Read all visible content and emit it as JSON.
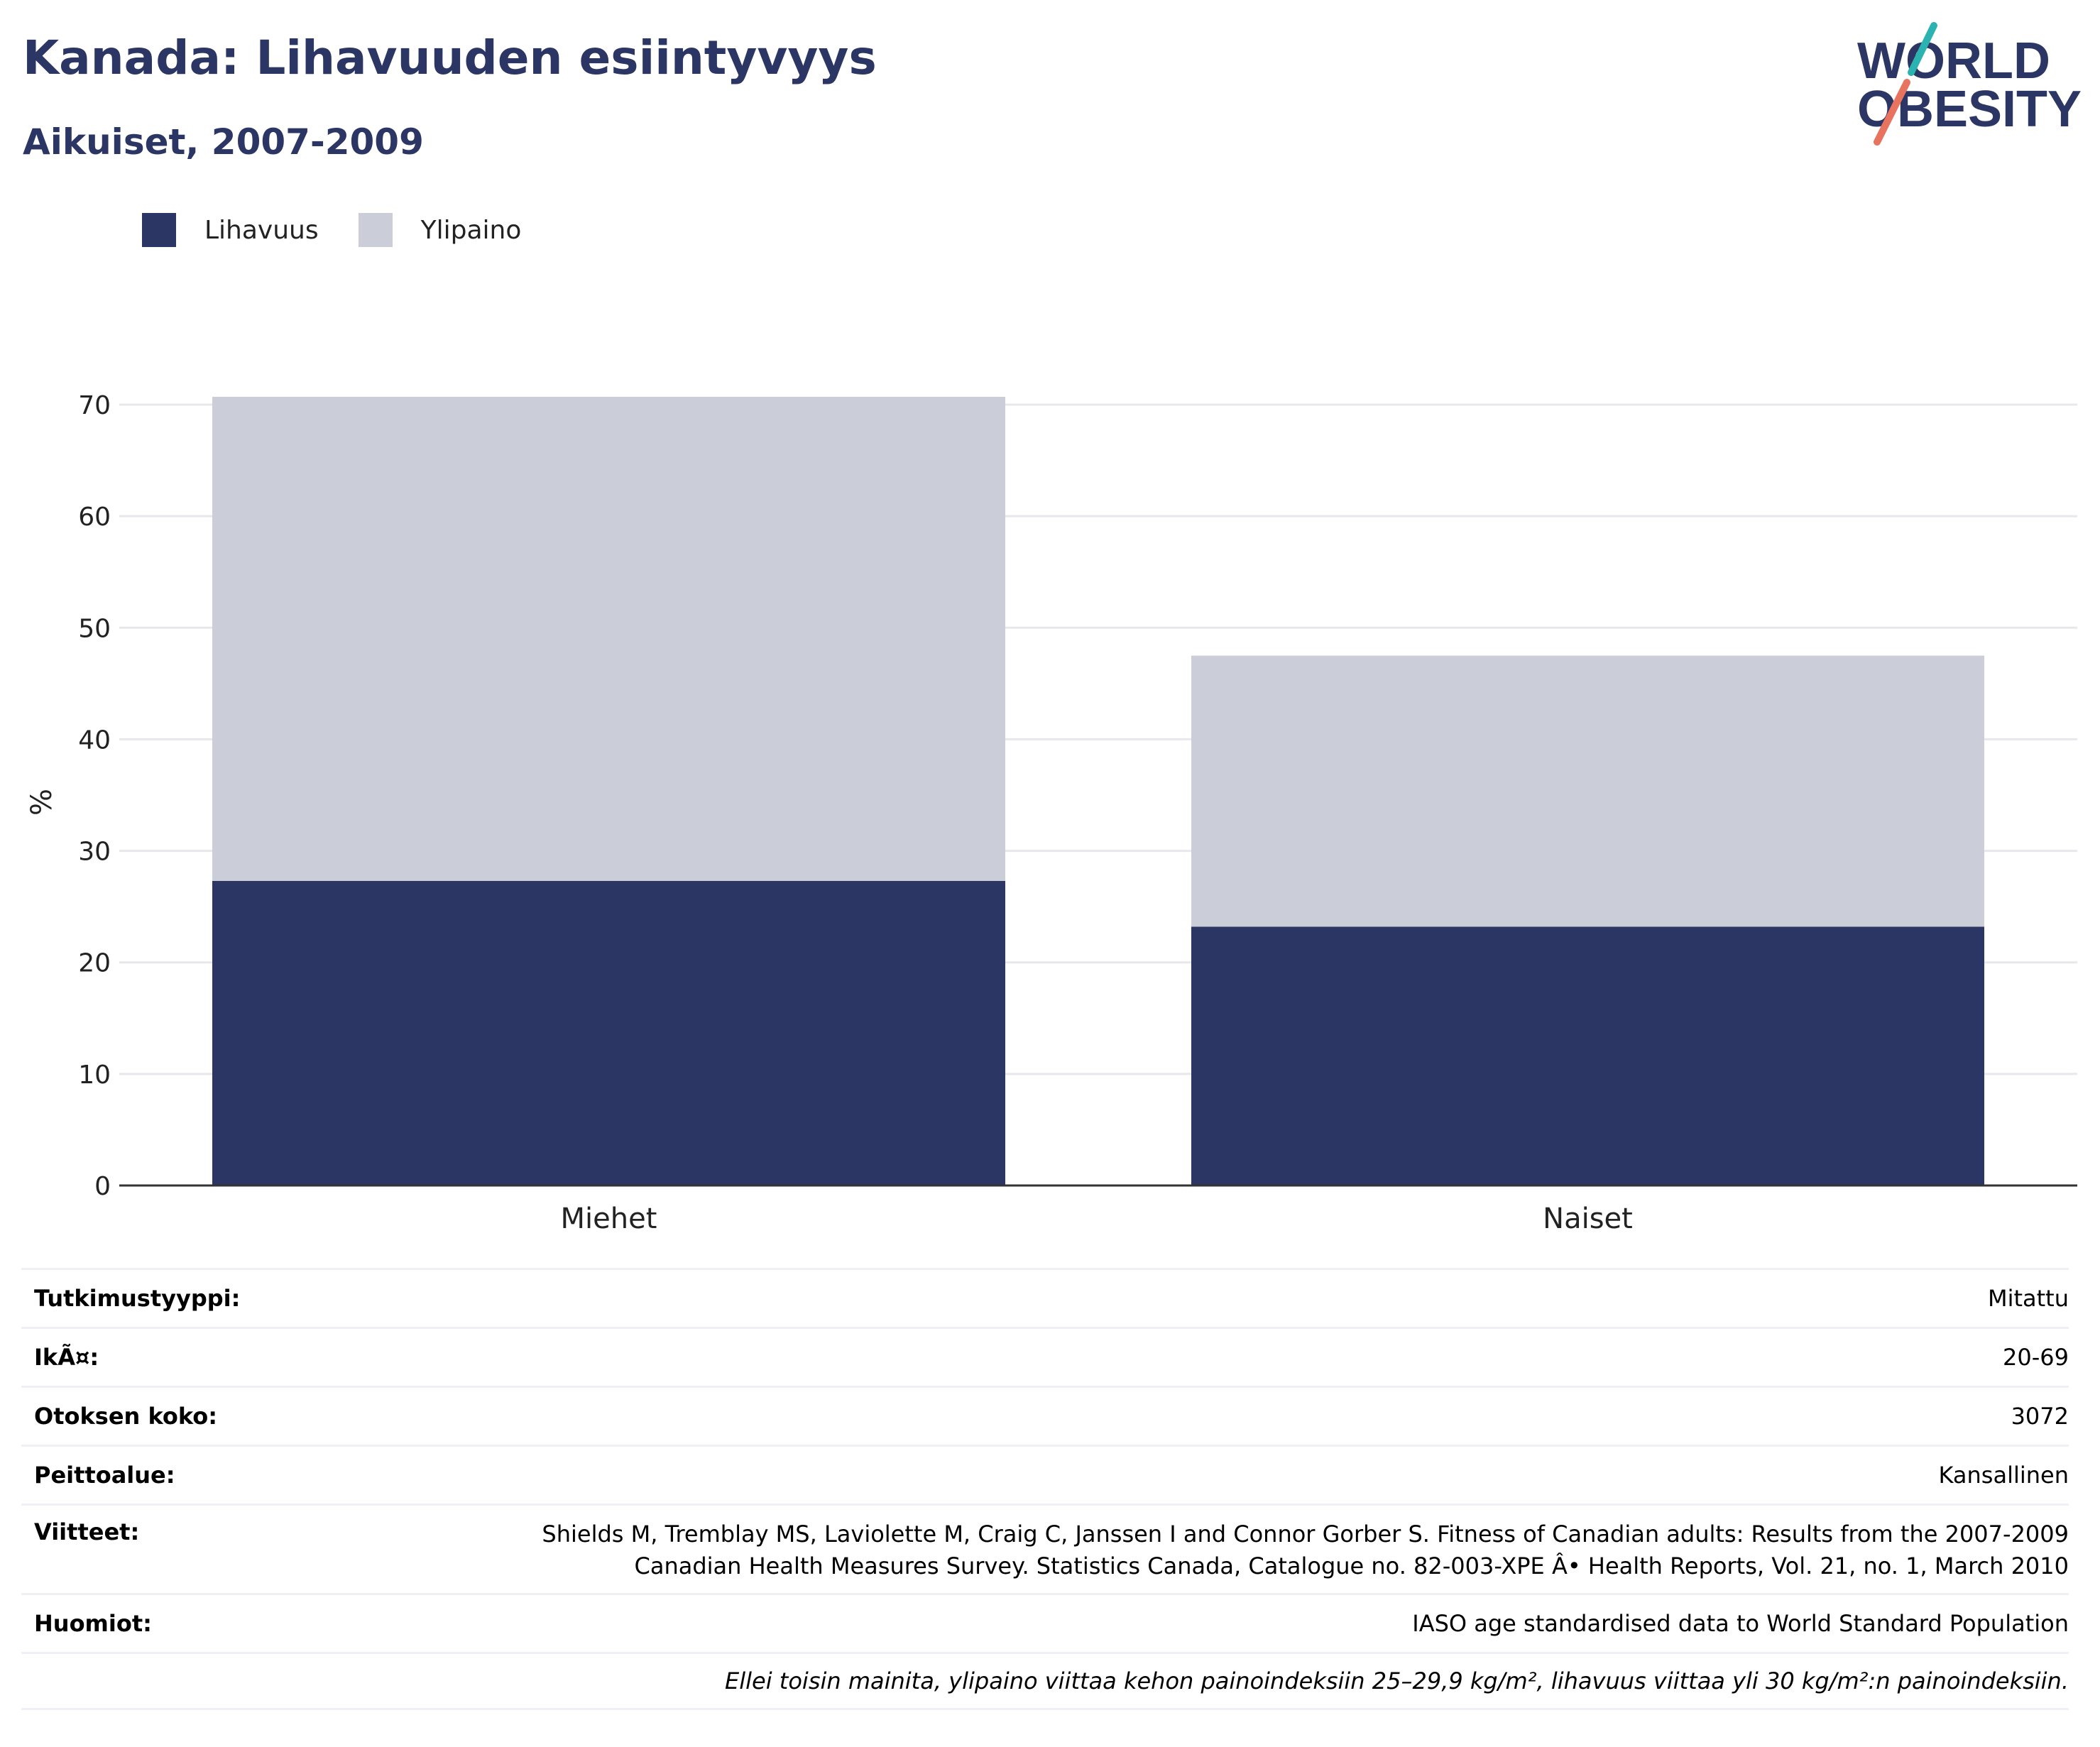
{
  "header": {
    "title": "Kanada: Lihavuuden esiintyvyys",
    "subtitle": "Aikuiset, 2007-2009"
  },
  "logo": {
    "line1": "WORLD",
    "line2": "OBESITY"
  },
  "colors": {
    "obesity": "#2b3664",
    "overweight": "#cbcdd8",
    "title": "#2b3664",
    "grid": "#e8e8ec",
    "axis": "#333333"
  },
  "chart_data": {
    "type": "bar",
    "stacked": true,
    "categories": [
      "Miehet",
      "Naiset"
    ],
    "series": [
      {
        "name": "Lihavuus",
        "color": "#2b3664",
        "values": [
          27.3,
          23.2
        ]
      },
      {
        "name": "Ylipaino",
        "color": "#cbcdd8",
        "values": [
          43.4,
          24.3
        ]
      }
    ],
    "ylabel": "%",
    "xlabel": "",
    "ylim": [
      0,
      70
    ],
    "yticks": [
      0,
      10,
      20,
      30,
      40,
      50,
      60,
      70
    ],
    "grid": true,
    "legend_position": "top-left"
  },
  "info": {
    "rows": [
      {
        "label": "Tutkimustyyppi:",
        "value": "Mitattu"
      },
      {
        "label": "IkÃ¤:",
        "value": "20-69"
      },
      {
        "label": "Otoksen koko:",
        "value": "3072"
      },
      {
        "label": "Peittoalue:",
        "value": "Kansallinen"
      },
      {
        "label": "Viitteet:",
        "value_line1": "Shields M, Tremblay MS, Laviolette M, Craig C, Janssen I and Connor Gorber S. Fitness of Canadian adults: Results from the 2007-2009",
        "value_line2": "Canadian Health Measures Survey. Statistics Canada, Catalogue no. 82-003-XPE Â• Health Reports, Vol. 21, no. 1, March 2010"
      },
      {
        "label": "Huomiot:",
        "value": "IASO age standardised data to World Standard Population"
      }
    ],
    "note": "Ellei toisin mainita, ylipaino viittaa kehon painoindeksiin 25–29,9 kg/m², lihavuus viittaa yli 30 kg/m²:n painoindeksiin."
  }
}
